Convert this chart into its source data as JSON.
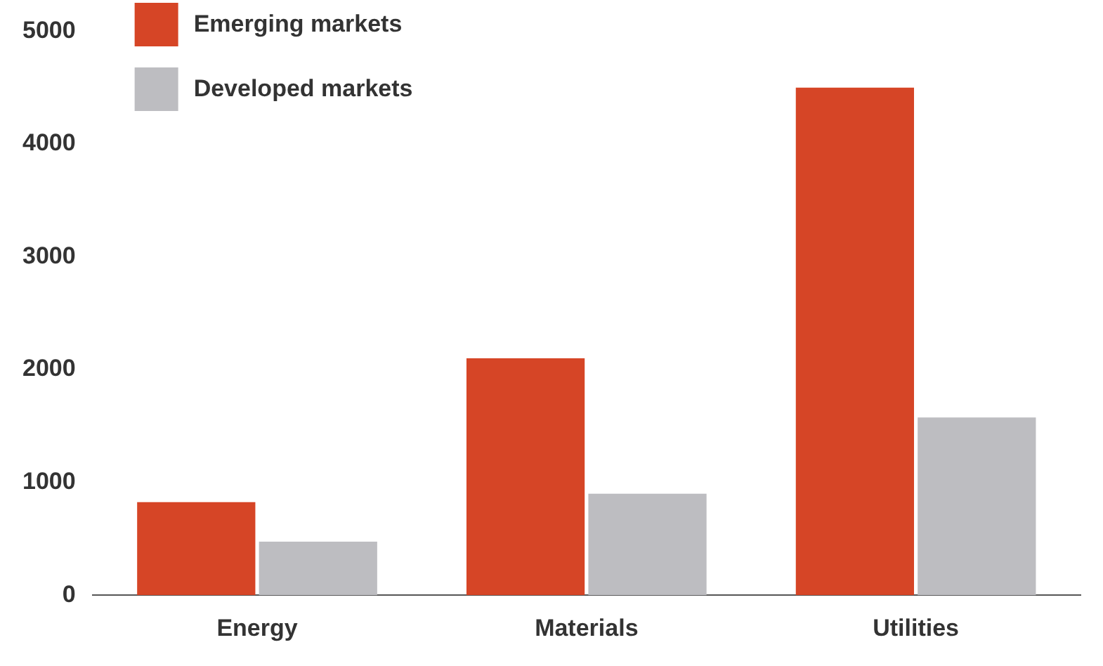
{
  "chart_data": {
    "type": "bar",
    "categories": [
      "Energy",
      "Materials",
      "Utilities"
    ],
    "series": [
      {
        "name": "Emerging markets",
        "color": "#d64526",
        "values": [
          825,
          2100,
          4500
        ]
      },
      {
        "name": "Developed markets",
        "color": "#bdbdc1",
        "values": [
          475,
          900,
          1575
        ]
      }
    ],
    "ylim": [
      0,
      5000
    ],
    "yticks": [
      0,
      1000,
      2000,
      3000,
      4000,
      5000
    ],
    "grid": false,
    "legend": "top left"
  }
}
